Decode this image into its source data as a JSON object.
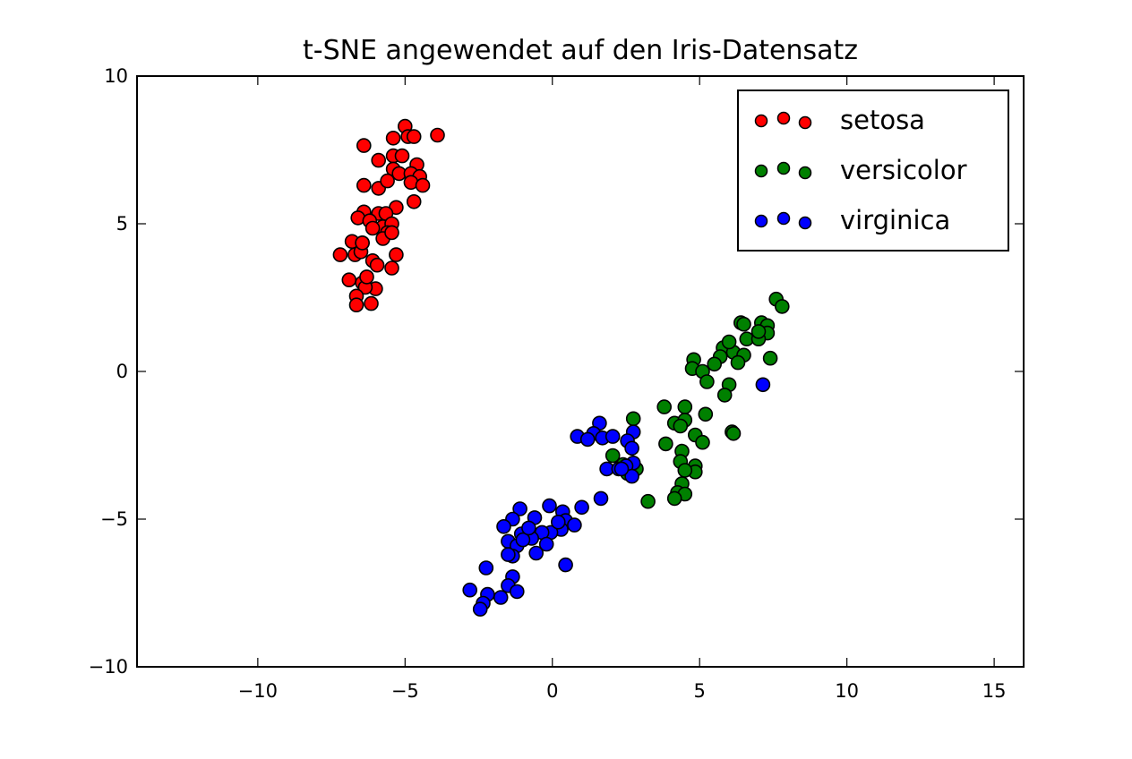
{
  "chart_data": {
    "type": "scatter",
    "title": "t-SNE angewendet auf den Iris-Datensatz",
    "xlabel": "",
    "ylabel": "",
    "xlim": [
      -14.1,
      16
    ],
    "ylim": [
      -10,
      10
    ],
    "x_ticks": [
      -10,
      -5,
      0,
      5,
      10,
      15
    ],
    "x_tick_labels": [
      "−10",
      "−5",
      "0",
      "5",
      "10",
      "15"
    ],
    "y_ticks": [
      10,
      5,
      0,
      -5,
      -10
    ],
    "y_tick_labels": [
      "10",
      "5",
      "0",
      "−5",
      "−10"
    ],
    "grid": false,
    "legend_position": "upper right",
    "series": [
      {
        "name": "setosa",
        "color": "#ff0000",
        "points": [
          [
            -5.0,
            8.3
          ],
          [
            -3.9,
            8.0
          ],
          [
            -5.4,
            7.9
          ],
          [
            -4.9,
            7.95
          ],
          [
            -4.7,
            7.95
          ],
          [
            -6.4,
            7.65
          ],
          [
            -5.9,
            7.15
          ],
          [
            -5.4,
            7.3
          ],
          [
            -5.1,
            7.3
          ],
          [
            -4.6,
            7.0
          ],
          [
            -5.4,
            6.85
          ],
          [
            -5.2,
            6.7
          ],
          [
            -4.8,
            6.7
          ],
          [
            -4.5,
            6.6
          ],
          [
            -6.4,
            6.3
          ],
          [
            -5.9,
            6.2
          ],
          [
            -5.6,
            6.45
          ],
          [
            -4.8,
            6.4
          ],
          [
            -4.4,
            6.3
          ],
          [
            -4.7,
            5.75
          ],
          [
            -6.4,
            5.4
          ],
          [
            -5.9,
            5.35
          ],
          [
            -5.3,
            5.55
          ],
          [
            -6.6,
            5.2
          ],
          [
            -6.2,
            5.1
          ],
          [
            -5.65,
            5.35
          ],
          [
            -5.75,
            4.9
          ],
          [
            -5.45,
            5.0
          ],
          [
            -5.6,
            4.7
          ],
          [
            -6.1,
            4.85
          ],
          [
            -6.8,
            4.4
          ],
          [
            -6.45,
            4.35
          ],
          [
            -5.75,
            4.5
          ],
          [
            -5.45,
            4.7
          ],
          [
            -7.2,
            3.95
          ],
          [
            -6.7,
            3.95
          ],
          [
            -6.1,
            3.75
          ],
          [
            -5.3,
            3.95
          ],
          [
            -6.5,
            4.05
          ],
          [
            -6.45,
            4.35
          ],
          [
            -5.45,
            3.5
          ],
          [
            -6.9,
            3.1
          ],
          [
            -6.45,
            3.0
          ],
          [
            -6.0,
            2.8
          ],
          [
            -6.35,
            2.85
          ],
          [
            -6.65,
            2.55
          ],
          [
            -6.65,
            2.25
          ],
          [
            -6.15,
            2.3
          ],
          [
            -6.3,
            3.2
          ],
          [
            -5.95,
            3.6
          ]
        ]
      },
      {
        "name": "versicolor",
        "color": "#008000",
        "points": [
          [
            7.6,
            2.45
          ],
          [
            7.8,
            2.2
          ],
          [
            6.4,
            1.65
          ],
          [
            7.1,
            1.65
          ],
          [
            7.3,
            1.55
          ],
          [
            7.3,
            1.3
          ],
          [
            6.6,
            1.1
          ],
          [
            7.0,
            1.1
          ],
          [
            5.8,
            0.8
          ],
          [
            6.15,
            0.65
          ],
          [
            5.7,
            0.5
          ],
          [
            4.8,
            0.4
          ],
          [
            6.5,
            0.55
          ],
          [
            7.4,
            0.45
          ],
          [
            5.5,
            0.25
          ],
          [
            6.3,
            0.3
          ],
          [
            4.75,
            0.1
          ],
          [
            5.1,
            0.0
          ],
          [
            5.25,
            -0.35
          ],
          [
            6.0,
            -0.45
          ],
          [
            3.8,
            -1.2
          ],
          [
            4.5,
            -1.2
          ],
          [
            4.15,
            -1.75
          ],
          [
            4.5,
            -1.65
          ],
          [
            4.35,
            -1.85
          ],
          [
            5.2,
            -1.45
          ],
          [
            6.1,
            -2.05
          ],
          [
            4.85,
            -2.15
          ],
          [
            3.85,
            -2.45
          ],
          [
            5.1,
            -2.4
          ],
          [
            4.4,
            -2.7
          ],
          [
            4.35,
            -3.05
          ],
          [
            4.85,
            -3.2
          ],
          [
            4.85,
            -3.4
          ],
          [
            4.5,
            -3.35
          ],
          [
            4.4,
            -3.8
          ],
          [
            4.25,
            -4.1
          ],
          [
            4.5,
            -4.15
          ],
          [
            4.15,
            -4.3
          ],
          [
            3.25,
            -4.4
          ],
          [
            2.75,
            -1.6
          ],
          [
            2.05,
            -2.85
          ],
          [
            2.4,
            -3.15
          ],
          [
            2.85,
            -3.3
          ],
          [
            2.55,
            -3.45
          ],
          [
            6.15,
            -2.1
          ],
          [
            5.85,
            -0.8
          ],
          [
            6.0,
            1.0
          ],
          [
            6.5,
            1.6
          ],
          [
            7.0,
            1.35
          ]
        ]
      },
      {
        "name": "virginica",
        "color": "#0000ff",
        "points": [
          [
            7.15,
            -0.45
          ],
          [
            1.6,
            -1.75
          ],
          [
            2.75,
            -2.05
          ],
          [
            1.4,
            -2.1
          ],
          [
            1.7,
            -2.25
          ],
          [
            2.05,
            -2.2
          ],
          [
            0.85,
            -2.2
          ],
          [
            2.55,
            -2.35
          ],
          [
            2.7,
            -2.6
          ],
          [
            2.75,
            -3.1
          ],
          [
            2.5,
            -3.2
          ],
          [
            1.85,
            -3.3
          ],
          [
            2.25,
            -3.3
          ],
          [
            2.7,
            -3.55
          ],
          [
            1.65,
            -4.3
          ],
          [
            1.0,
            -4.6
          ],
          [
            -1.1,
            -4.65
          ],
          [
            -0.1,
            -4.55
          ],
          [
            0.35,
            -4.75
          ],
          [
            -1.35,
            -5.0
          ],
          [
            -0.6,
            -4.95
          ],
          [
            -1.65,
            -5.25
          ],
          [
            0.45,
            -5.05
          ],
          [
            0.75,
            -5.2
          ],
          [
            0.3,
            -5.35
          ],
          [
            -0.05,
            -5.45
          ],
          [
            -0.35,
            -5.45
          ],
          [
            -1.05,
            -5.5
          ],
          [
            -1.5,
            -5.75
          ],
          [
            -0.7,
            -5.65
          ],
          [
            -1.2,
            -5.9
          ],
          [
            -1.0,
            -5.7
          ],
          [
            -0.2,
            -5.85
          ],
          [
            -0.55,
            -6.15
          ],
          [
            -1.35,
            -6.25
          ],
          [
            -1.5,
            -6.2
          ],
          [
            0.45,
            -6.55
          ],
          [
            -2.25,
            -6.65
          ],
          [
            -1.35,
            -6.95
          ],
          [
            -2.8,
            -7.4
          ],
          [
            -1.5,
            -7.25
          ],
          [
            -2.2,
            -7.55
          ],
          [
            -1.2,
            -7.45
          ],
          [
            -1.75,
            -7.65
          ],
          [
            -2.35,
            -7.85
          ],
          [
            -2.45,
            -8.05
          ],
          [
            0.2,
            -5.1
          ],
          [
            -0.8,
            -5.3
          ],
          [
            2.35,
            -3.3
          ],
          [
            1.2,
            -2.3
          ]
        ]
      }
    ]
  },
  "legend": {
    "items": [
      {
        "label": "setosa",
        "color": "#ff0000"
      },
      {
        "label": "versicolor",
        "color": "#008000"
      },
      {
        "label": "virginica",
        "color": "#0000ff"
      }
    ]
  }
}
